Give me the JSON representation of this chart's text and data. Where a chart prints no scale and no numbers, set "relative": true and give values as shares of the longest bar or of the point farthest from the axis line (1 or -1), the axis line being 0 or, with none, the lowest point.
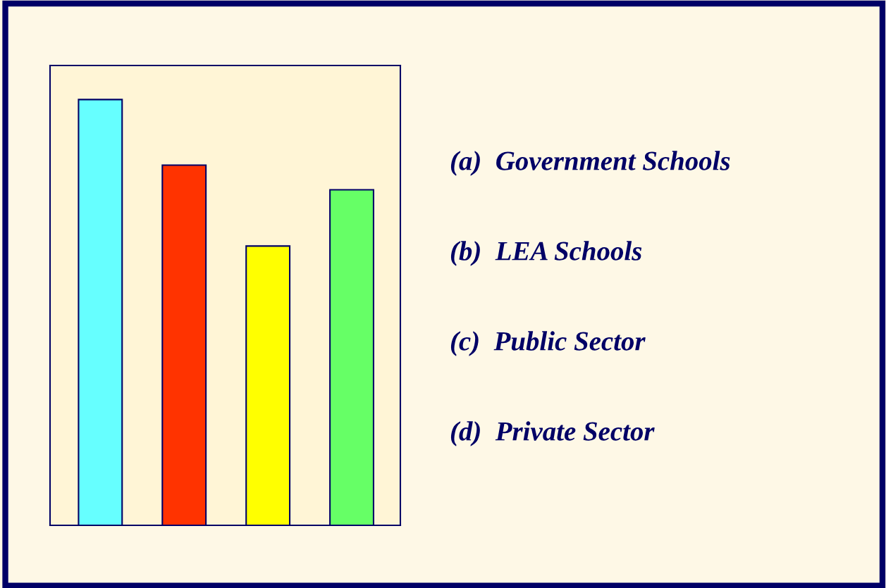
{
  "chart_data": {
    "type": "bar",
    "relative": true,
    "categories": [
      null,
      null,
      null,
      null
    ],
    "values": [
      1,
      0.846,
      0.656,
      0.788
    ],
    "colors": [
      "#66ffff",
      "#ff3300",
      "#ffff00",
      "#66ff66"
    ],
    "annotations": [
      "(a)  Government Schools",
      "(b)  LEA Schools",
      "(c)  Public Sector",
      "(d)  Private Sector"
    ],
    "grid": false,
    "legend": false
  }
}
